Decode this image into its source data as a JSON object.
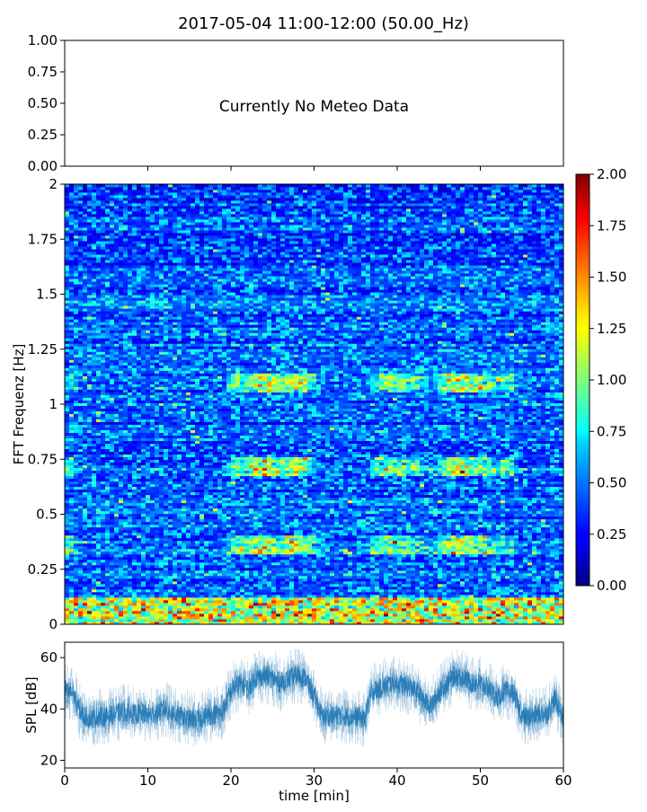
{
  "title": "2017-05-04 11:00-12:00 (50.00_Hz)",
  "chart_data": [
    {
      "type": "line",
      "panel": "meteo",
      "message": "Currently No Meteo Data",
      "ylim": [
        0,
        1
      ],
      "yticks": [
        "0.00",
        "0.25",
        "0.50",
        "0.75",
        "1.00"
      ],
      "xlim": [
        0,
        60
      ]
    },
    {
      "type": "heatmap",
      "panel": "spectrogram",
      "ylabel": "FFT Frequenz [Hz]",
      "xlim": [
        0,
        60
      ],
      "ylim": [
        0,
        2
      ],
      "yticks": [
        "0",
        "0.25",
        "0.5",
        "0.75",
        "1",
        "1.25",
        "1.5",
        "1.75",
        "2"
      ],
      "colormap": "jet",
      "clim": [
        0,
        2
      ],
      "colorbar_ticks": [
        "0.00",
        "0.25",
        "0.50",
        "0.75",
        "1.00",
        "1.25",
        "1.50",
        "1.75",
        "2.00"
      ]
    },
    {
      "type": "line",
      "panel": "spl",
      "xlabel": "time [min]",
      "ylabel": "SPL [dB]",
      "xlim": [
        0,
        60
      ],
      "ylim": [
        17,
        66
      ],
      "xticks": [
        "0",
        "10",
        "20",
        "30",
        "40",
        "50",
        "60"
      ],
      "yticks": [
        "20",
        "40",
        "60"
      ],
      "color": "#1f77b4",
      "x": [
        0,
        1,
        2,
        3,
        4,
        5,
        6,
        7,
        8,
        9,
        10,
        11,
        12,
        13,
        14,
        15,
        16,
        17,
        18,
        19,
        20,
        21,
        22,
        23,
        24,
        25,
        26,
        27,
        28,
        29,
        30,
        31,
        32,
        33,
        34,
        35,
        36,
        37,
        38,
        39,
        40,
        41,
        42,
        43,
        44,
        45,
        46,
        47,
        48,
        49,
        50,
        51,
        52,
        53,
        54,
        55,
        56,
        57,
        58,
        59,
        60
      ],
      "y": [
        47,
        46,
        38,
        36,
        37,
        37,
        38,
        39,
        38,
        38,
        38,
        38,
        40,
        38,
        37,
        36,
        36,
        37,
        38,
        39,
        47,
        50,
        48,
        52,
        53,
        52,
        50,
        52,
        53,
        52,
        45,
        37,
        37,
        38,
        37,
        37,
        36,
        47,
        48,
        50,
        50,
        49,
        48,
        44,
        41,
        46,
        50,
        53,
        52,
        50,
        50,
        48,
        44,
        47,
        46,
        37,
        37,
        38,
        38,
        44,
        36
      ]
    }
  ]
}
